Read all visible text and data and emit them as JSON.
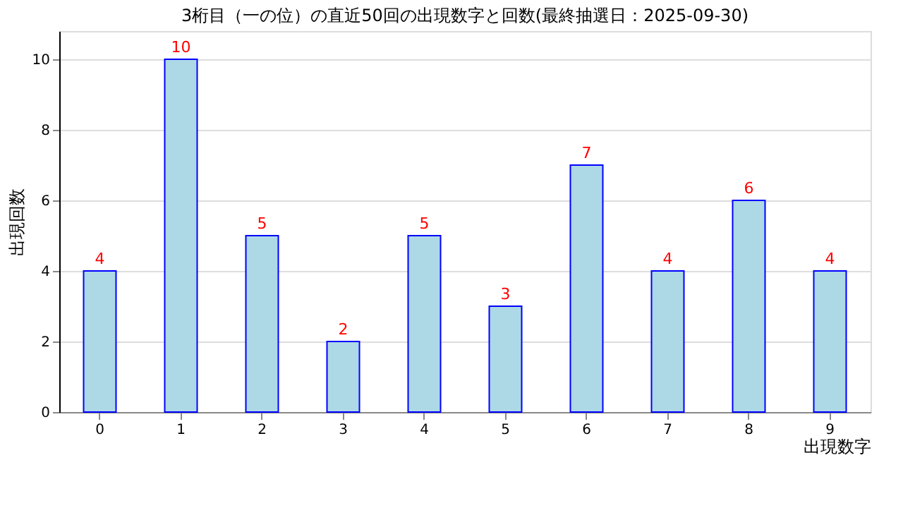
{
  "chart_data": {
    "type": "bar",
    "title": "3桁目（一の位）の直近50回の出現数字と回数(最終抽選日：2025-09-30)",
    "categories": [
      "0",
      "1",
      "2",
      "3",
      "4",
      "5",
      "6",
      "7",
      "8",
      "9"
    ],
    "values": [
      4,
      10,
      5,
      2,
      5,
      3,
      7,
      4,
      6,
      4
    ],
    "color": "#add8e6",
    "xlabel": "出現数字",
    "ylabel": "出現回数",
    "ylim": [
      0,
      10.8
    ],
    "yticks": [
      0,
      2,
      4,
      6,
      8,
      10
    ],
    "grid": "y",
    "data_labels": true
  }
}
